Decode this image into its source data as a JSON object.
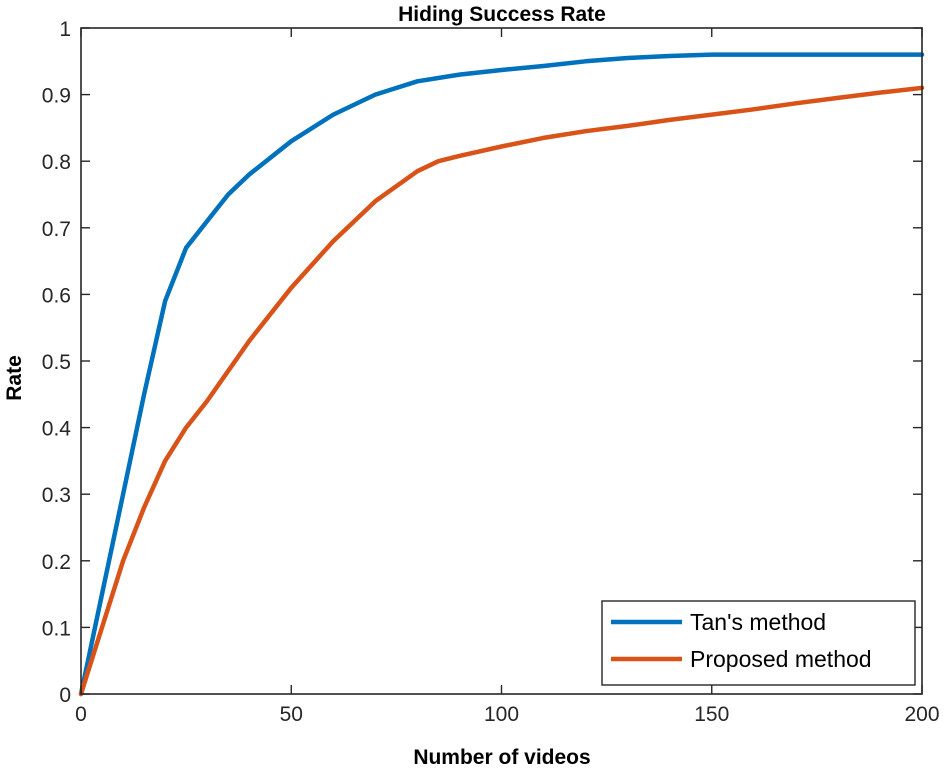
{
  "chart_data": {
    "type": "line",
    "title": "Hiding Success Rate",
    "xlabel": "Number of videos",
    "ylabel": "Rate",
    "xlim": [
      0,
      200
    ],
    "ylim": [
      0,
      1
    ],
    "xticks": [
      0,
      50,
      100,
      150,
      200
    ],
    "yticks": [
      0,
      0.1,
      0.2,
      0.3,
      0.4,
      0.5,
      0.6,
      0.7,
      0.8,
      0.9,
      1
    ],
    "grid": false,
    "legend_position": "bottom-right",
    "series": [
      {
        "name": "Tan's method",
        "color": "#0072BD",
        "x": [
          0,
          5,
          10,
          15,
          20,
          25,
          30,
          35,
          40,
          50,
          60,
          70,
          80,
          90,
          100,
          110,
          120,
          130,
          140,
          150,
          160,
          170,
          180,
          190,
          200
        ],
        "y": [
          0,
          0.15,
          0.3,
          0.45,
          0.59,
          0.67,
          0.71,
          0.75,
          0.78,
          0.83,
          0.87,
          0.9,
          0.92,
          0.93,
          0.937,
          0.943,
          0.95,
          0.955,
          0.958,
          0.96,
          0.96,
          0.96,
          0.96,
          0.96,
          0.96
        ]
      },
      {
        "name": "Proposed method",
        "color": "#D95319",
        "x": [
          0,
          5,
          10,
          15,
          20,
          25,
          30,
          40,
          50,
          60,
          70,
          80,
          85,
          90,
          100,
          110,
          120,
          130,
          140,
          150,
          160,
          170,
          180,
          190,
          200
        ],
        "y": [
          0,
          0.1,
          0.2,
          0.28,
          0.35,
          0.4,
          0.44,
          0.53,
          0.61,
          0.68,
          0.74,
          0.785,
          0.8,
          0.808,
          0.822,
          0.835,
          0.845,
          0.853,
          0.862,
          0.87,
          0.878,
          0.887,
          0.895,
          0.903,
          0.91
        ]
      }
    ]
  }
}
